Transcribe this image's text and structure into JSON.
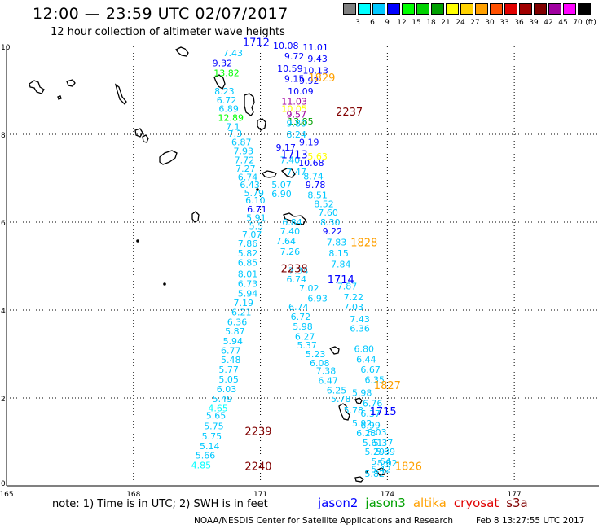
{
  "header": {
    "title": "12:00 — 23:59 UTC 02/07/2017",
    "subtitle": "12 hour collection of altimeter wave heights"
  },
  "legend": {
    "unit": "(ft)",
    "bins": [
      {
        "label": "3",
        "color": "#808080"
      },
      {
        "label": "6",
        "color": "#00ffff"
      },
      {
        "label": "9",
        "color": "#00c8ff"
      },
      {
        "label": "12",
        "color": "#0000ff"
      },
      {
        "label": "15",
        "color": "#00ff00"
      },
      {
        "label": "18",
        "color": "#00d200"
      },
      {
        "label": "21",
        "color": "#00a000"
      },
      {
        "label": "24",
        "color": "#ffff00"
      },
      {
        "label": "27",
        "color": "#ffd200"
      },
      {
        "label": "30",
        "color": "#ffa000"
      },
      {
        "label": "33",
        "color": "#ff5000"
      },
      {
        "label": "36",
        "color": "#e00000"
      },
      {
        "label": "39",
        "color": "#a00000"
      },
      {
        "label": "42",
        "color": "#800000"
      },
      {
        "label": "45",
        "color": "#a000a0"
      },
      {
        "label": "70",
        "color": "#ff00ff"
      },
      {
        "label": "",
        "color": "#000000"
      }
    ]
  },
  "map": {
    "x_axis": {
      "ticks": [
        "165",
        "168",
        "171",
        "174",
        "177"
      ],
      "range": [
        165,
        179
      ]
    },
    "y_axis": {
      "ticks": [
        "0",
        "2",
        "4",
        "6",
        "8",
        "10"
      ],
      "range": [
        0,
        10
      ]
    },
    "grid": true
  },
  "observations": [
    {
      "lon": 170.35,
      "lat": 9.85,
      "v": "7.43",
      "c": "#00c8ff"
    },
    {
      "lon": 170.1,
      "lat": 9.62,
      "v": "9.32",
      "c": "#0000ff"
    },
    {
      "lon": 170.2,
      "lat": 9.4,
      "v": "13.82",
      "c": "#00ff00"
    },
    {
      "lon": 170.15,
      "lat": 8.98,
      "v": "8.23",
      "c": "#00c8ff"
    },
    {
      "lon": 170.2,
      "lat": 8.78,
      "v": "6.72",
      "c": "#00c8ff"
    },
    {
      "lon": 170.25,
      "lat": 8.58,
      "v": "6.89",
      "c": "#00c8ff"
    },
    {
      "lon": 170.3,
      "lat": 8.38,
      "v": "12.89",
      "c": "#00ff00"
    },
    {
      "lon": 170.35,
      "lat": 8.18,
      "v": "7.1",
      "c": "#00c8ff"
    },
    {
      "lon": 170.4,
      "lat": 8.02,
      "v": "7.3",
      "c": "#00c8ff"
    },
    {
      "lon": 170.55,
      "lat": 7.82,
      "v": "6.87",
      "c": "#00c8ff"
    },
    {
      "lon": 170.6,
      "lat": 7.62,
      "v": "7.93",
      "c": "#00c8ff"
    },
    {
      "lon": 170.62,
      "lat": 7.42,
      "v": "7.72",
      "c": "#00c8ff"
    },
    {
      "lon": 170.65,
      "lat": 7.22,
      "v": "7.27",
      "c": "#00c8ff"
    },
    {
      "lon": 170.7,
      "lat": 7.03,
      "v": "6.74",
      "c": "#00c8ff"
    },
    {
      "lon": 170.75,
      "lat": 6.85,
      "v": "6.43",
      "c": "#00c8ff"
    },
    {
      "lon": 170.85,
      "lat": 6.67,
      "v": "5.79",
      "c": "#00c8ff"
    },
    {
      "lon": 170.88,
      "lat": 6.5,
      "v": "6.10",
      "c": "#00c8ff"
    },
    {
      "lon": 170.92,
      "lat": 6.3,
      "v": "6.71",
      "c": "#0000ff"
    },
    {
      "lon": 170.9,
      "lat": 6.1,
      "v": "5.91",
      "c": "#00c8ff"
    },
    {
      "lon": 170.9,
      "lat": 5.92,
      "v": "5.5",
      "c": "#00c8ff"
    },
    {
      "lon": 170.8,
      "lat": 5.72,
      "v": "7.07",
      "c": "#00c8ff"
    },
    {
      "lon": 170.7,
      "lat": 5.52,
      "v": "7.86",
      "c": "#00c8ff"
    },
    {
      "lon": 170.7,
      "lat": 5.3,
      "v": "5.82",
      "c": "#00c8ff"
    },
    {
      "lon": 170.7,
      "lat": 5.08,
      "v": "6.85",
      "c": "#00c8ff"
    },
    {
      "lon": 170.7,
      "lat": 4.82,
      "v": "8.01",
      "c": "#00c8ff"
    },
    {
      "lon": 170.7,
      "lat": 4.6,
      "v": "6.73",
      "c": "#00c8ff"
    },
    {
      "lon": 170.7,
      "lat": 4.38,
      "v": "5.94",
      "c": "#00c8ff"
    },
    {
      "lon": 170.6,
      "lat": 4.17,
      "v": "7.19",
      "c": "#00c8ff"
    },
    {
      "lon": 170.55,
      "lat": 3.95,
      "v": "6.21",
      "c": "#00c8ff"
    },
    {
      "lon": 170.45,
      "lat": 3.73,
      "v": "6.36",
      "c": "#00c8ff"
    },
    {
      "lon": 170.4,
      "lat": 3.52,
      "v": "5.87",
      "c": "#00c8ff"
    },
    {
      "lon": 170.35,
      "lat": 3.3,
      "v": "5.94",
      "c": "#00c8ff"
    },
    {
      "lon": 170.3,
      "lat": 3.08,
      "v": "6.77",
      "c": "#00c8ff"
    },
    {
      "lon": 170.3,
      "lat": 2.87,
      "v": "5.48",
      "c": "#00c8ff"
    },
    {
      "lon": 170.25,
      "lat": 2.65,
      "v": "5.77",
      "c": "#00c8ff"
    },
    {
      "lon": 170.25,
      "lat": 2.43,
      "v": "5.05",
      "c": "#00c8ff"
    },
    {
      "lon": 170.2,
      "lat": 2.2,
      "v": "6.03",
      "c": "#00c8ff"
    },
    {
      "lon": 170.1,
      "lat": 1.98,
      "v": "5.49",
      "c": "#00c8ff"
    },
    {
      "lon": 170.0,
      "lat": 1.77,
      "v": "4.65",
      "c": "#00ffff"
    },
    {
      "lon": 169.95,
      "lat": 1.6,
      "v": "5.65",
      "c": "#00c8ff"
    },
    {
      "lon": 169.9,
      "lat": 1.36,
      "v": "5.75",
      "c": "#00c8ff"
    },
    {
      "lon": 169.85,
      "lat": 1.13,
      "v": "5.75",
      "c": "#00c8ff"
    },
    {
      "lon": 169.8,
      "lat": 0.91,
      "v": "5.14",
      "c": "#00c8ff"
    },
    {
      "lon": 169.7,
      "lat": 0.69,
      "v": "5.66",
      "c": "#00c8ff"
    },
    {
      "lon": 169.6,
      "lat": 0.47,
      "v": "4.85",
      "c": "#00ffff"
    },
    {
      "lon": 171.6,
      "lat": 10.02,
      "v": "10.08",
      "c": "#0000ff"
    },
    {
      "lon": 172.3,
      "lat": 9.98,
      "v": "11.01",
      "c": "#0000ff"
    },
    {
      "lon": 171.8,
      "lat": 9.78,
      "v": "9.72",
      "c": "#0000ff"
    },
    {
      "lon": 172.35,
      "lat": 9.72,
      "v": "9.43",
      "c": "#0000ff"
    },
    {
      "lon": 171.7,
      "lat": 9.5,
      "v": "10.59",
      "c": "#0000ff"
    },
    {
      "lon": 172.3,
      "lat": 9.45,
      "v": "10.13",
      "c": "#0000ff"
    },
    {
      "lon": 171.8,
      "lat": 9.27,
      "v": "9.15",
      "c": "#0000ff"
    },
    {
      "lon": 172.15,
      "lat": 9.22,
      "v": "9.92",
      "c": "#0000ff"
    },
    {
      "lon": 171.95,
      "lat": 8.98,
      "v": "10.09",
      "c": "#0000ff"
    },
    {
      "lon": 171.8,
      "lat": 8.75,
      "v": "11.03",
      "c": "#a000a0"
    },
    {
      "lon": 171.8,
      "lat": 8.58,
      "v": "10.05",
      "c": "#ffff00"
    },
    {
      "lon": 171.85,
      "lat": 8.45,
      "v": "9.57",
      "c": "#a000a0"
    },
    {
      "lon": 171.95,
      "lat": 8.3,
      "v": "13.85",
      "c": "#00a000"
    },
    {
      "lon": 171.85,
      "lat": 8.25,
      "v": "9.80",
      "c": "#00c8ff"
    },
    {
      "lon": 171.85,
      "lat": 8.0,
      "v": "8.24",
      "c": "#00c8ff"
    },
    {
      "lon": 172.15,
      "lat": 7.82,
      "v": "9.19",
      "c": "#0000ff"
    },
    {
      "lon": 171.6,
      "lat": 7.7,
      "v": "9.17",
      "c": "#0000ff"
    },
    {
      "lon": 172.35,
      "lat": 7.5,
      "v": "5.63",
      "c": "#ffff00"
    },
    {
      "lon": 171.7,
      "lat": 7.42,
      "v": "7.40",
      "c": "#00c8ff"
    },
    {
      "lon": 172.2,
      "lat": 7.35,
      "v": "10.68",
      "c": "#0000ff"
    },
    {
      "lon": 171.85,
      "lat": 7.15,
      "v": "7.47",
      "c": "#00c8ff"
    },
    {
      "lon": 172.25,
      "lat": 7.05,
      "v": "8.74",
      "c": "#00c8ff"
    },
    {
      "lon": 171.5,
      "lat": 6.85,
      "v": "5.07",
      "c": "#00c8ff"
    },
    {
      "lon": 172.3,
      "lat": 6.85,
      "v": "9.78",
      "c": "#0000ff"
    },
    {
      "lon": 171.5,
      "lat": 6.65,
      "v": "6.90",
      "c": "#00c8ff"
    },
    {
      "lon": 172.35,
      "lat": 6.62,
      "v": "8.51",
      "c": "#00c8ff"
    },
    {
      "lon": 172.5,
      "lat": 6.42,
      "v": "8.52",
      "c": "#00c8ff"
    },
    {
      "lon": 172.6,
      "lat": 6.22,
      "v": "7.60",
      "c": "#00c8ff"
    },
    {
      "lon": 171.75,
      "lat": 6.0,
      "v": "6.84",
      "c": "#00c8ff"
    },
    {
      "lon": 172.65,
      "lat": 6.0,
      "v": "8.30",
      "c": "#00c8ff"
    },
    {
      "lon": 171.7,
      "lat": 5.8,
      "v": "7.40",
      "c": "#00c8ff"
    },
    {
      "lon": 172.7,
      "lat": 5.8,
      "v": "9.22",
      "c": "#0000ff"
    },
    {
      "lon": 171.6,
      "lat": 5.57,
      "v": "7.64",
      "c": "#00c8ff"
    },
    {
      "lon": 172.8,
      "lat": 5.55,
      "v": "7.83",
      "c": "#00c8ff"
    },
    {
      "lon": 171.7,
      "lat": 5.33,
      "v": "7.26",
      "c": "#00c8ff"
    },
    {
      "lon": 172.85,
      "lat": 5.3,
      "v": "8.15",
      "c": "#00c8ff"
    },
    {
      "lon": 172.9,
      "lat": 5.05,
      "v": "7.84",
      "c": "#00c8ff"
    },
    {
      "lon": 171.9,
      "lat": 4.9,
      "v": "7.34",
      "c": "#00c8ff"
    },
    {
      "lon": 171.85,
      "lat": 4.7,
      "v": "6.74",
      "c": "#00c8ff"
    },
    {
      "lon": 173.05,
      "lat": 4.55,
      "v": "7.87",
      "c": "#00c8ff"
    },
    {
      "lon": 172.15,
      "lat": 4.5,
      "v": "7.02",
      "c": "#00c8ff"
    },
    {
      "lon": 173.2,
      "lat": 4.3,
      "v": "7.22",
      "c": "#00c8ff"
    },
    {
      "lon": 172.35,
      "lat": 4.27,
      "v": "6.93",
      "c": "#00c8ff"
    },
    {
      "lon": 171.9,
      "lat": 4.07,
      "v": "6.74",
      "c": "#00c8ff"
    },
    {
      "lon": 173.2,
      "lat": 4.07,
      "v": "7.03",
      "c": "#00c8ff"
    },
    {
      "lon": 171.95,
      "lat": 3.85,
      "v": "6.72",
      "c": "#00c8ff"
    },
    {
      "lon": 173.35,
      "lat": 3.8,
      "v": "7.43",
      "c": "#00c8ff"
    },
    {
      "lon": 172.0,
      "lat": 3.63,
      "v": "5.98",
      "c": "#00c8ff"
    },
    {
      "lon": 173.35,
      "lat": 3.58,
      "v": "6.36",
      "c": "#00c8ff"
    },
    {
      "lon": 172.05,
      "lat": 3.4,
      "v": "6.27",
      "c": "#00c8ff"
    },
    {
      "lon": 172.1,
      "lat": 3.2,
      "v": "5.37",
      "c": "#00c8ff"
    },
    {
      "lon": 173.45,
      "lat": 3.12,
      "v": "6.80",
      "c": "#00c8ff"
    },
    {
      "lon": 172.3,
      "lat": 3.0,
      "v": "5.23",
      "c": "#00c8ff"
    },
    {
      "lon": 173.5,
      "lat": 2.88,
      "v": "6.44",
      "c": "#00c8ff"
    },
    {
      "lon": 172.4,
      "lat": 2.8,
      "v": "6.08",
      "c": "#00c8ff"
    },
    {
      "lon": 173.6,
      "lat": 2.65,
      "v": "6.67",
      "c": "#00c8ff"
    },
    {
      "lon": 172.55,
      "lat": 2.62,
      "v": "7.38",
      "c": "#00c8ff"
    },
    {
      "lon": 173.7,
      "lat": 2.42,
      "v": "6.35",
      "c": "#00c8ff"
    },
    {
      "lon": 172.6,
      "lat": 2.4,
      "v": "6.47",
      "c": "#00c8ff"
    },
    {
      "lon": 172.8,
      "lat": 2.18,
      "v": "6.25",
      "c": "#00c8ff"
    },
    {
      "lon": 173.4,
      "lat": 2.12,
      "v": "5.98",
      "c": "#00c8ff"
    },
    {
      "lon": 172.9,
      "lat": 1.98,
      "v": "5.78",
      "c": "#00c8ff"
    },
    {
      "lon": 173.65,
      "lat": 1.88,
      "v": "6.76",
      "c": "#00c8ff"
    },
    {
      "lon": 173.2,
      "lat": 1.72,
      "v": "5.78",
      "c": "#00c8ff"
    },
    {
      "lon": 173.6,
      "lat": 1.65,
      "v": "6.37",
      "c": "#00c8ff"
    },
    {
      "lon": 173.4,
      "lat": 1.43,
      "v": "5.92",
      "c": "#00c8ff"
    },
    {
      "lon": 173.6,
      "lat": 1.38,
      "v": "6.99",
      "c": "#00c8ff"
    },
    {
      "lon": 173.5,
      "lat": 1.2,
      "v": "6.23",
      "c": "#00c8ff"
    },
    {
      "lon": 173.75,
      "lat": 1.22,
      "v": "6.03",
      "c": "#00c8ff"
    },
    {
      "lon": 173.65,
      "lat": 0.98,
      "v": "5.61",
      "c": "#00c8ff"
    },
    {
      "lon": 173.9,
      "lat": 0.98,
      "v": "5.37",
      "c": "#00c8ff"
    },
    {
      "lon": 173.7,
      "lat": 0.78,
      "v": "5.29",
      "c": "#00c8ff"
    },
    {
      "lon": 173.95,
      "lat": 0.78,
      "v": "5.89",
      "c": "#00c8ff"
    },
    {
      "lon": 173.85,
      "lat": 0.56,
      "v": "5.64",
      "c": "#00c8ff"
    },
    {
      "lon": 174.0,
      "lat": 0.52,
      "v": "5.02",
      "c": "#00c8ff"
    },
    {
      "lon": 173.85,
      "lat": 0.38,
      "v": "5.42",
      "c": "#00c8ff"
    },
    {
      "lon": 173.7,
      "lat": 0.28,
      "v": "5.82",
      "c": "#00c8ff"
    }
  ],
  "track_times": [
    {
      "lon": 170.9,
      "lat": 10.1,
      "t": "1712",
      "c": "#0000ff"
    },
    {
      "lon": 172.45,
      "lat": 9.3,
      "t": "1829",
      "c": "#ffa000"
    },
    {
      "lon": 173.1,
      "lat": 8.52,
      "t": "2237",
      "c": "#800000"
    },
    {
      "lon": 171.8,
      "lat": 7.55,
      "t": "1713",
      "c": "#0000ff"
    },
    {
      "lon": 173.45,
      "lat": 5.55,
      "t": "1828",
      "c": "#ffa000"
    },
    {
      "lon": 171.8,
      "lat": 4.95,
      "t": "2238",
      "c": "#800000"
    },
    {
      "lon": 172.9,
      "lat": 4.7,
      "t": "1714",
      "c": "#0000ff"
    },
    {
      "lon": 174.0,
      "lat": 2.3,
      "t": "1827",
      "c": "#ffa000"
    },
    {
      "lon": 173.9,
      "lat": 1.7,
      "t": "1715",
      "c": "#0000ff"
    },
    {
      "lon": 170.95,
      "lat": 1.25,
      "t": "2239",
      "c": "#800000"
    },
    {
      "lon": 170.95,
      "lat": 0.45,
      "t": "2240",
      "c": "#800000"
    },
    {
      "lon": 174.5,
      "lat": 0.45,
      "t": "1826",
      "c": "#ffa000"
    }
  ],
  "footer": {
    "note": "note: 1) Time is in UTC; 2) SWH is in feet",
    "satellites": [
      {
        "name": "jason2",
        "color": "#0000ff"
      },
      {
        "name": "jason3",
        "color": "#00a000"
      },
      {
        "name": "altika",
        "color": "#ffa000"
      },
      {
        "name": "cryosat",
        "color": "#e00000"
      },
      {
        "name": "s3a",
        "color": "#800000"
      }
    ],
    "credit": "NOAA/NESDIS Center for Satellite Applications and Research",
    "timestamp": "Feb  8 13:27:55 UTC 2017"
  }
}
